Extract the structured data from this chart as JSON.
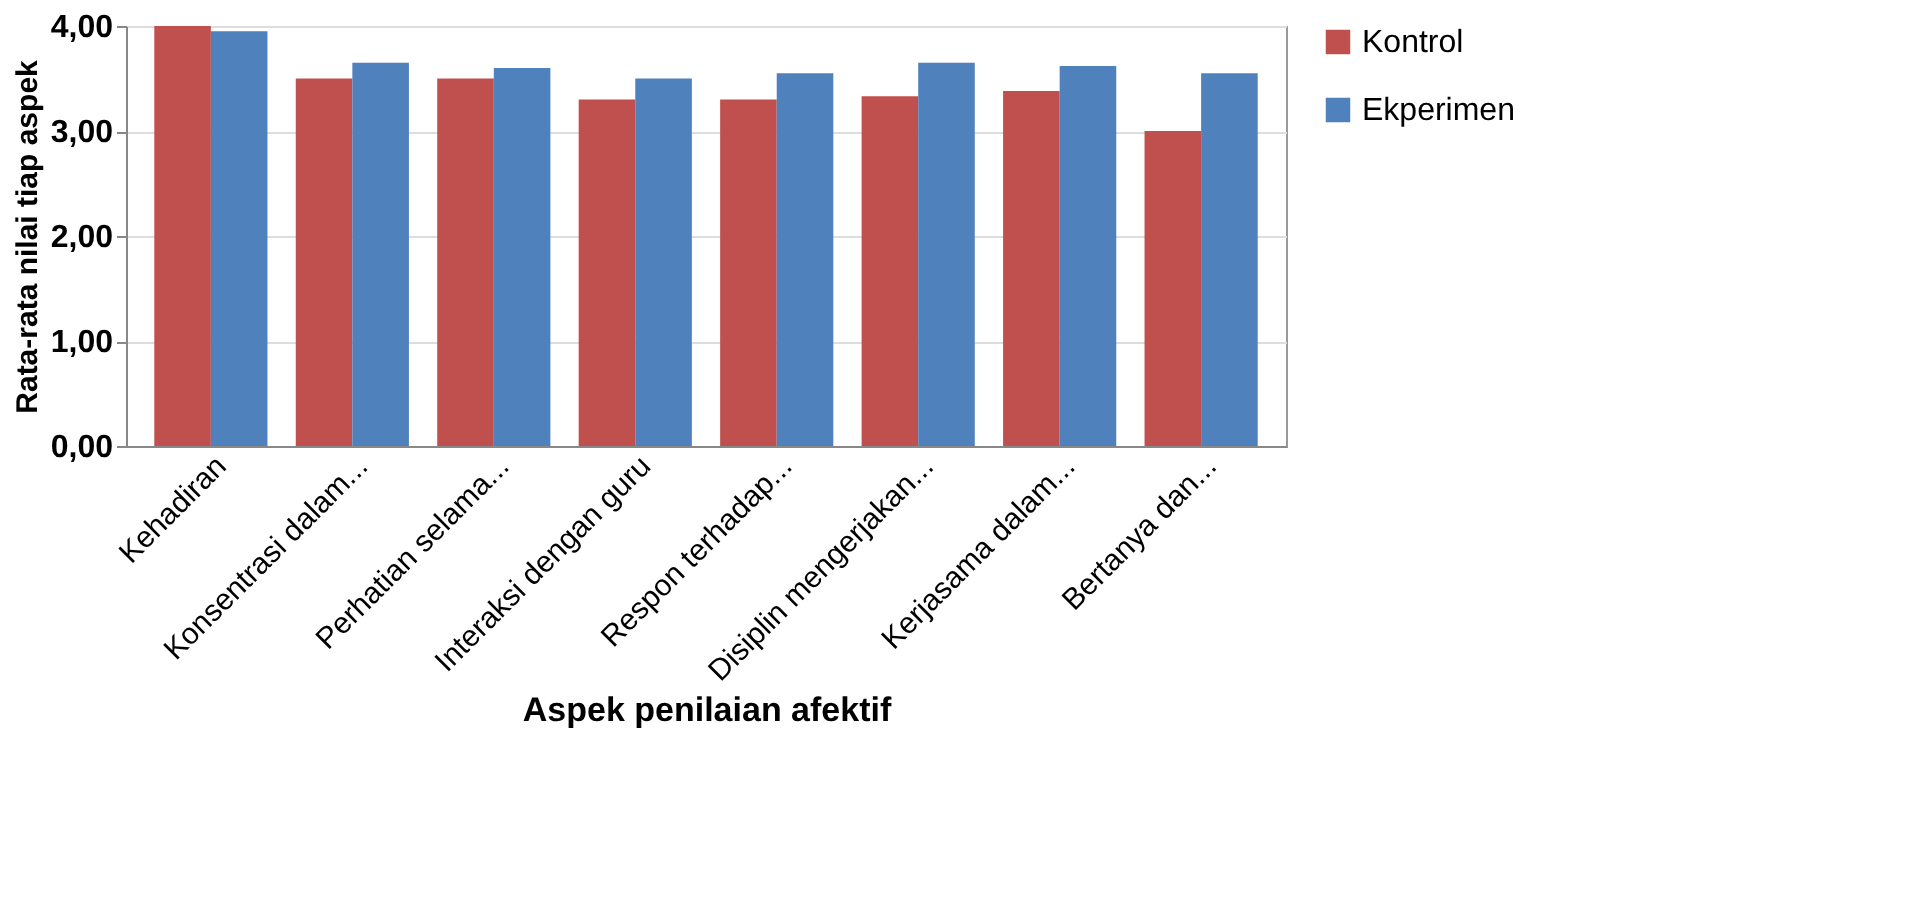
{
  "chart_data": {
    "type": "bar",
    "xlabel": "Aspek penilaian afektif",
    "ylabel": "Rata-rata  nilai tiap aspek",
    "categories": [
      "Kehadiran",
      "Konsentrasi dalam...",
      "Perhatian selama...",
      "Interaksi dengan guru",
      "Respon terhadap...",
      "Disiplin mengerjakan...",
      "Kerjasama dalam...",
      "Bertanya dan..."
    ],
    "series": [
      {
        "name": "Kontrol",
        "color": "#c0504d",
        "values": [
          4.0,
          3.5,
          3.5,
          3.3,
          3.3,
          3.33,
          3.38,
          3.0
        ]
      },
      {
        "name": "Ekperimen",
        "color": "#4f81bd",
        "values": [
          3.95,
          3.65,
          3.6,
          3.5,
          3.55,
          3.65,
          3.62,
          3.55
        ]
      }
    ],
    "ylim": [
      0,
      4
    ],
    "yticks": [
      {
        "value": 0,
        "label": "0,00"
      },
      {
        "value": 1,
        "label": "1,00"
      },
      {
        "value": 2,
        "label": "2,00"
      },
      {
        "value": 3,
        "label": "3,00"
      },
      {
        "value": 4,
        "label": "4,00"
      }
    ],
    "grid": "y",
    "legend": "right"
  }
}
